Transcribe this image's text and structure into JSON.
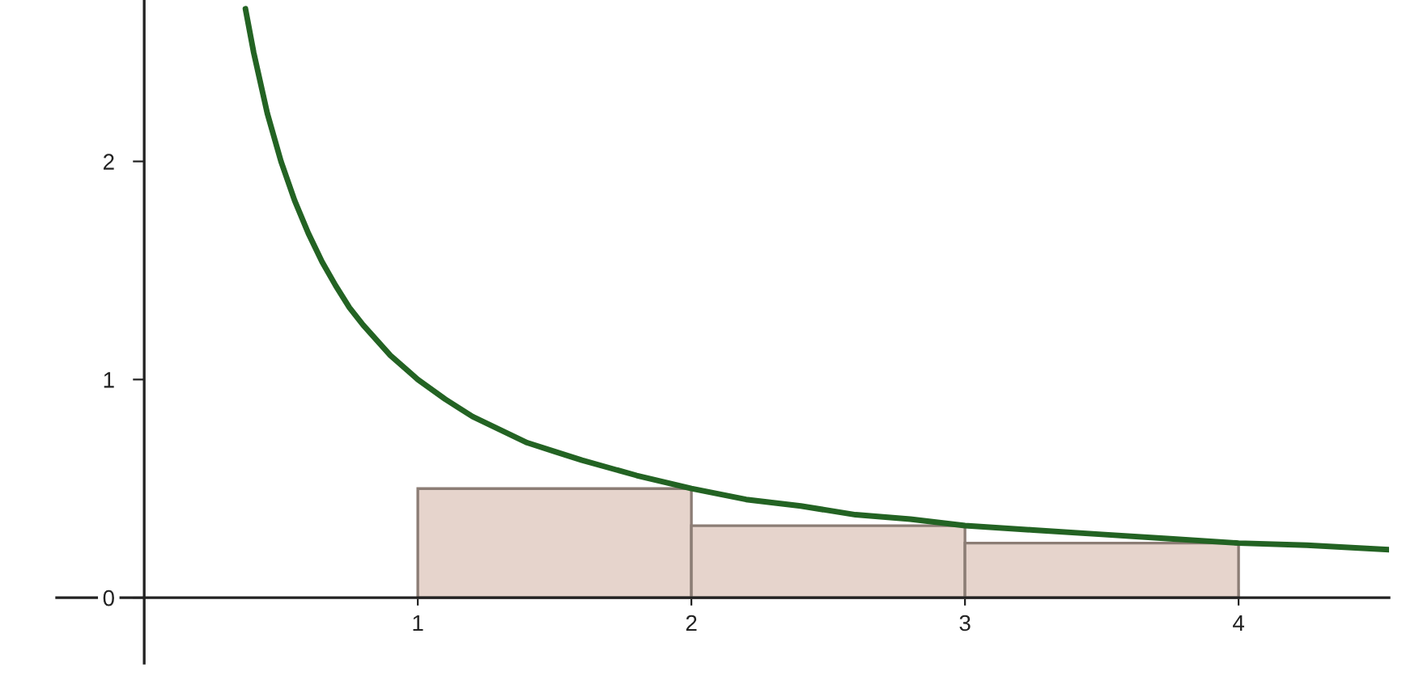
{
  "chart_data": {
    "type": "histogram",
    "series": [
      {
        "bins": [
          1,
          2,
          3,
          4
        ],
        "values": [
          0.5,
          0.33,
          0.25
        ],
        "color": "#e6d4cc"
      },
      {
        "type": "line",
        "color": "#236323",
        "x": [
          0.37,
          0.4,
          0.45,
          0.5,
          0.55,
          0.6,
          0.65,
          0.7,
          0.75,
          0.8,
          0.9,
          1.0,
          1.1,
          1.2,
          1.3,
          1.4,
          1.5,
          1.6,
          1.8,
          2.0,
          2.2,
          2.4,
          2.6,
          2.8,
          3.0,
          3.25,
          3.5,
          3.75,
          4.0,
          4.25,
          4.55
        ],
        "values": [
          2.7,
          2.5,
          2.22,
          2.0,
          1.82,
          1.67,
          1.54,
          1.43,
          1.33,
          1.25,
          1.11,
          1.0,
          0.91,
          0.83,
          0.77,
          0.71,
          0.67,
          0.63,
          0.56,
          0.5,
          0.45,
          0.42,
          0.38,
          0.36,
          0.33,
          0.31,
          0.29,
          0.27,
          0.25,
          0.24,
          0.22
        ]
      }
    ],
    "xlim": [
      -0.32,
      4.55
    ],
    "ylim": [
      -0.3,
      2.74
    ],
    "xticks": [
      1,
      2,
      3,
      4
    ],
    "yticks": [
      0,
      1,
      2
    ]
  }
}
